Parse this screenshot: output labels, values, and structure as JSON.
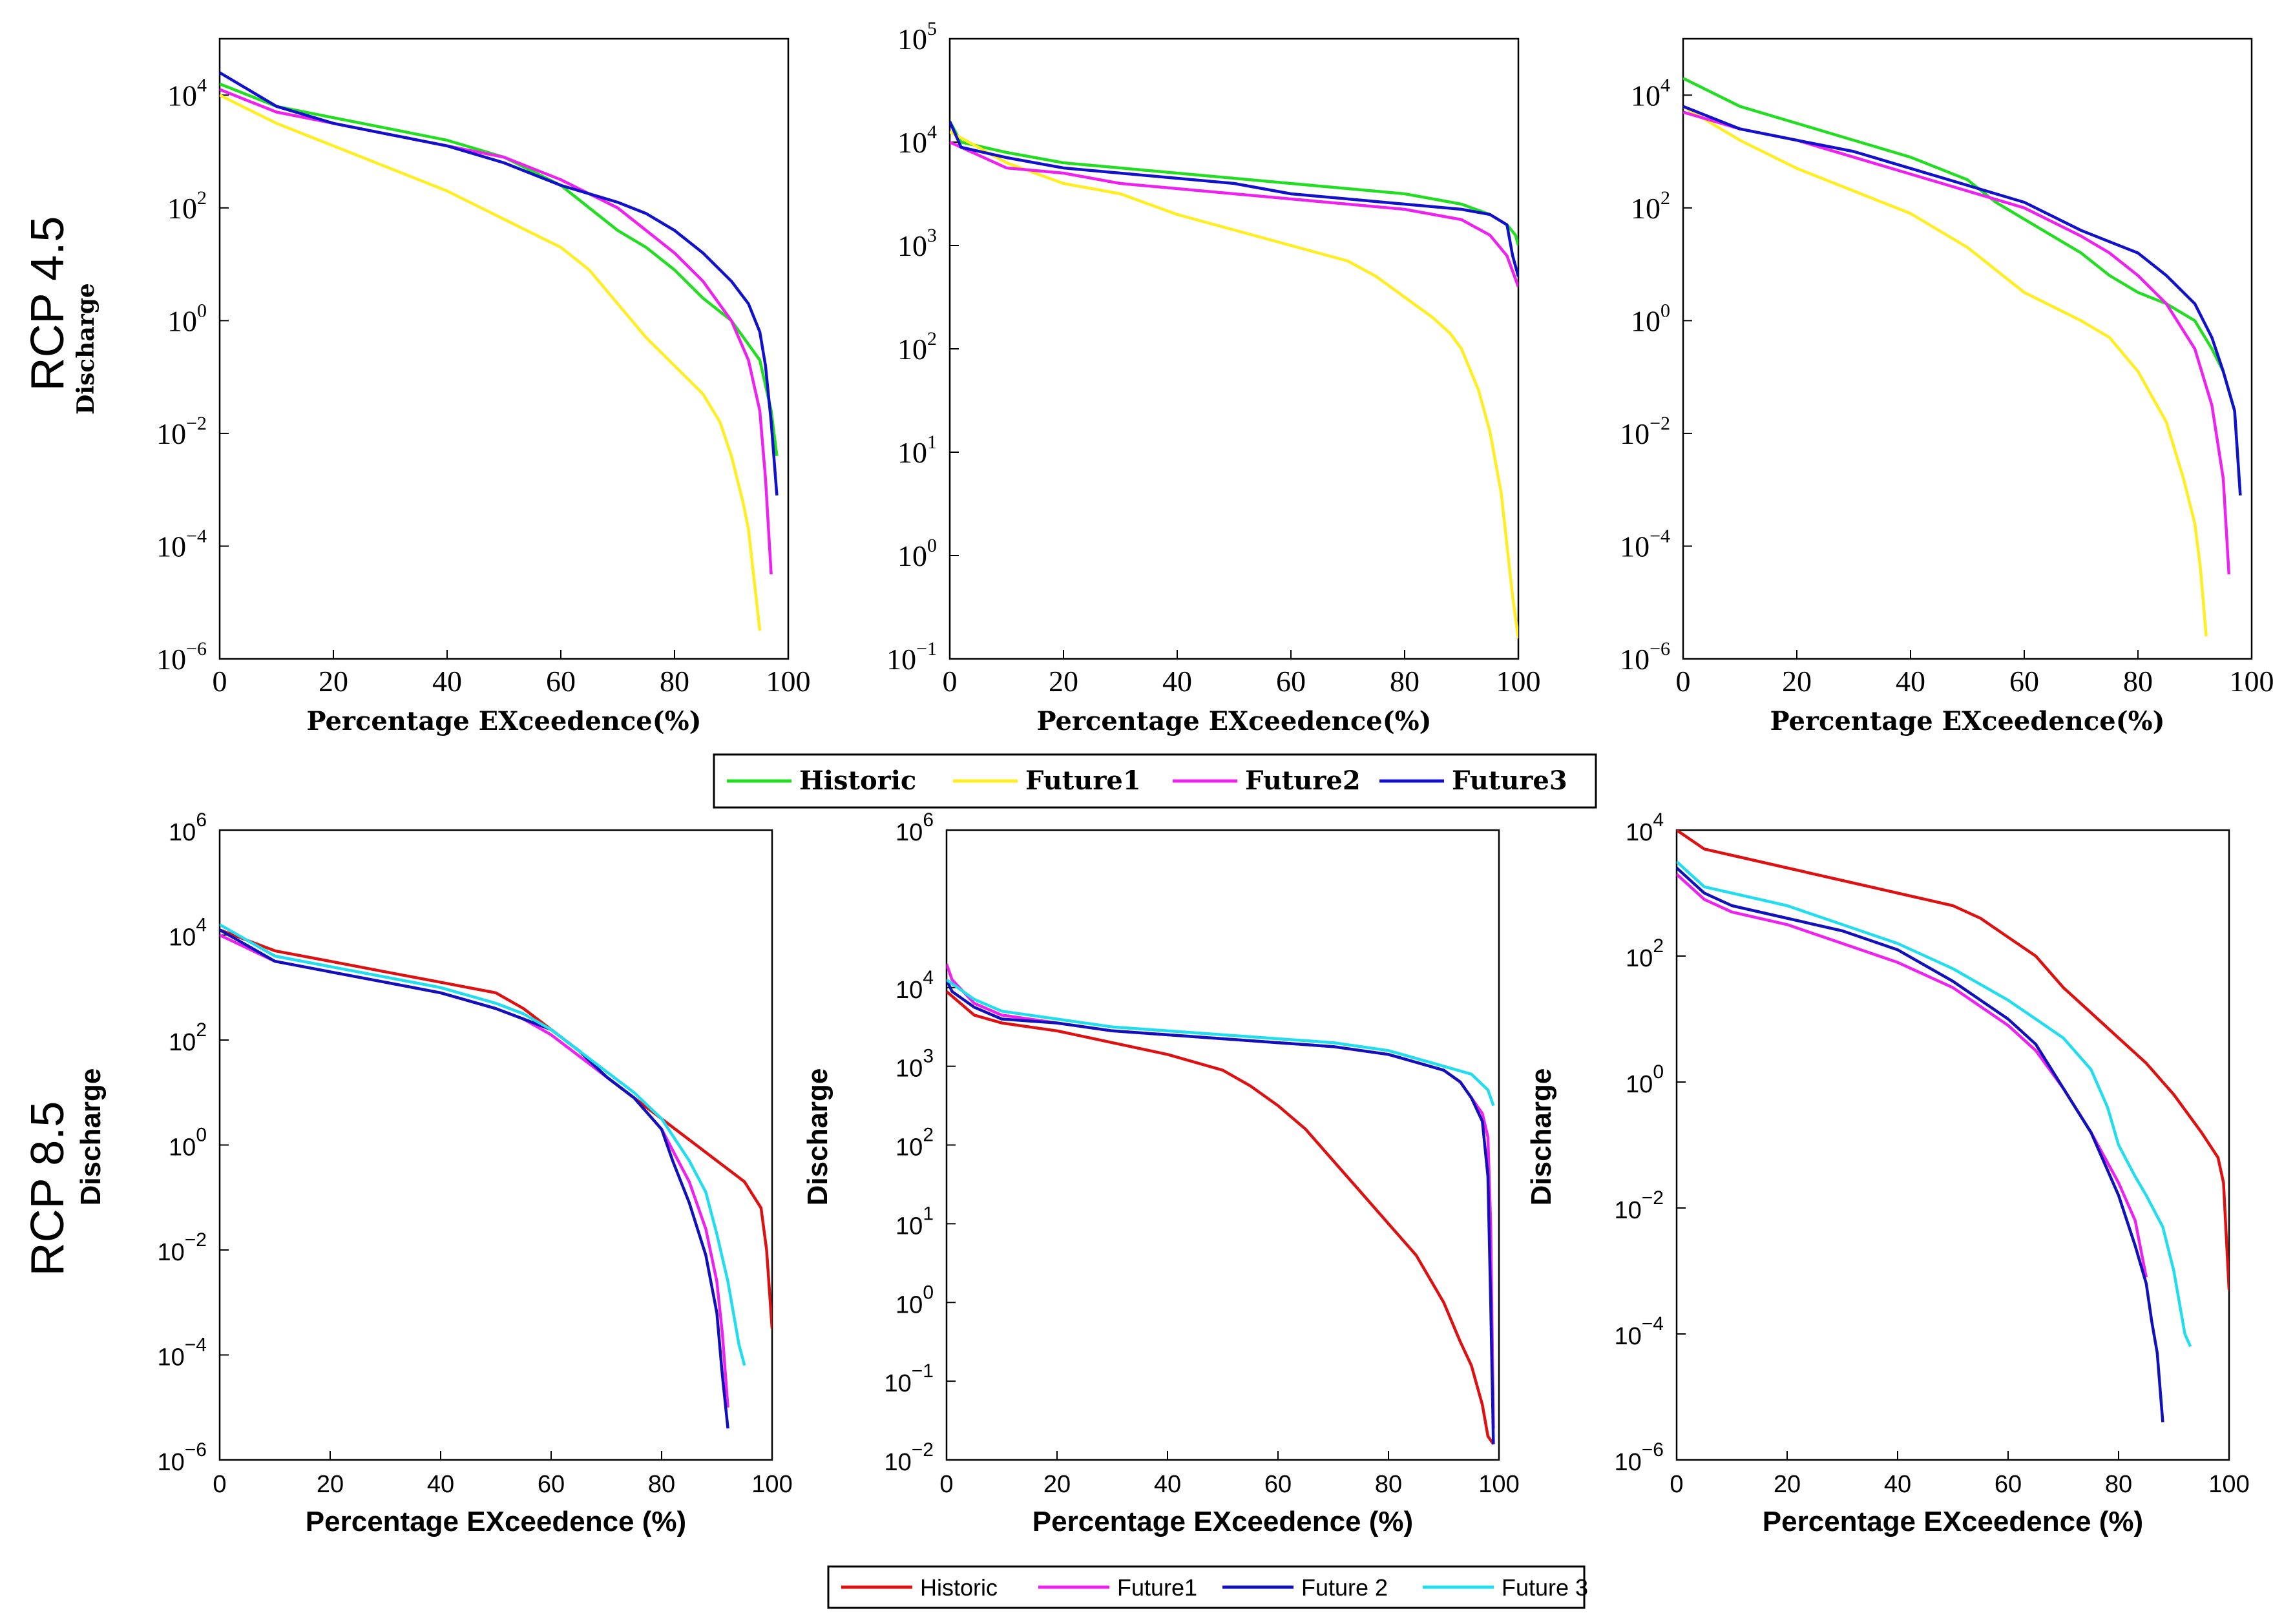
{
  "row_labels": [
    "RCP 4.5",
    "RCP 8.5"
  ],
  "colors": {
    "Historic_top": "#22dd22",
    "Future1_top": "#ffee22",
    "Future2_top": "#ee22ee",
    "Future3_top": "#1111cc",
    "Historic_bottom": "#dd1111",
    "Future1_bottom": "#ee22ee",
    "Future2_bottom": "#1111bb",
    "Future3_bottom": "#22ddee"
  },
  "legends": [
    {
      "entries": [
        "Historic",
        "Future1",
        "Future2",
        "Future3"
      ]
    },
    {
      "entries": [
        "Historic",
        "Future1",
        "Future 2",
        "Future 3"
      ]
    }
  ],
  "chart_data": [
    {
      "type": "line",
      "title": "",
      "xlabel": "Percentage EXceedence(%)",
      "ylabel": "Discharge",
      "xlim": [
        0,
        100
      ],
      "ylim_exp": [
        -6,
        5
      ],
      "xticks": [
        "0",
        "20",
        "40",
        "60",
        "80",
        "100"
      ],
      "yticks_exp": [
        4,
        2,
        0,
        -2,
        -4,
        -6
      ],
      "series": [
        {
          "name": "Historic",
          "x": [
            0,
            10,
            20,
            30,
            40,
            50,
            60,
            65,
            70,
            75,
            80,
            85,
            90,
            95,
            97,
            98
          ],
          "log10_y": [
            4.2,
            3.8,
            3.6,
            3.4,
            3.2,
            2.9,
            2.4,
            2.0,
            1.6,
            1.3,
            0.9,
            0.4,
            0.0,
            -0.7,
            -1.6,
            -2.4
          ]
        },
        {
          "name": "Future1",
          "x": [
            0,
            10,
            20,
            30,
            40,
            50,
            60,
            65,
            70,
            75,
            80,
            85,
            88,
            90,
            92,
            93,
            94,
            95
          ],
          "log10_y": [
            4.0,
            3.5,
            3.1,
            2.7,
            2.3,
            1.8,
            1.3,
            0.9,
            0.3,
            -0.3,
            -0.8,
            -1.3,
            -1.8,
            -2.4,
            -3.2,
            -3.7,
            -4.6,
            -5.5
          ]
        },
        {
          "name": "Future2",
          "x": [
            0,
            10,
            20,
            30,
            40,
            50,
            60,
            70,
            75,
            80,
            85,
            90,
            93,
            95,
            96,
            97
          ],
          "log10_y": [
            4.1,
            3.7,
            3.5,
            3.3,
            3.1,
            2.9,
            2.5,
            2.0,
            1.6,
            1.2,
            0.7,
            0.0,
            -0.7,
            -1.6,
            -2.8,
            -4.5
          ]
        },
        {
          "name": "Future3",
          "x": [
            0,
            10,
            20,
            30,
            40,
            50,
            60,
            70,
            75,
            80,
            85,
            90,
            93,
            95,
            96,
            97,
            98
          ],
          "log10_y": [
            4.4,
            3.8,
            3.5,
            3.3,
            3.1,
            2.8,
            2.4,
            2.1,
            1.9,
            1.6,
            1.2,
            0.7,
            0.3,
            -0.2,
            -0.8,
            -1.8,
            -3.1
          ]
        }
      ]
    },
    {
      "type": "line",
      "title": "",
      "xlabel": "Percentage EXceedence(%)",
      "ylabel": "",
      "xlim": [
        0,
        100
      ],
      "ylim_exp": [
        -1,
        5
      ],
      "xticks": [
        "0",
        "20",
        "40",
        "60",
        "80",
        "100"
      ],
      "yticks_exp": [
        5,
        4,
        3,
        2,
        1,
        0,
        -1
      ],
      "series": [
        {
          "name": "Historic",
          "x": [
            0,
            2,
            10,
            20,
            30,
            40,
            50,
            60,
            70,
            80,
            90,
            95,
            98,
            99.5,
            100
          ],
          "log10_y": [
            4.2,
            4.0,
            3.9,
            3.8,
            3.75,
            3.7,
            3.65,
            3.6,
            3.55,
            3.5,
            3.4,
            3.3,
            3.2,
            3.1,
            3.0
          ]
        },
        {
          "name": "Future1",
          "x": [
            0,
            10,
            20,
            30,
            40,
            50,
            60,
            70,
            75,
            80,
            85,
            88,
            90,
            93,
            95,
            97,
            98,
            99,
            100
          ],
          "log10_y": [
            4.1,
            3.8,
            3.6,
            3.5,
            3.3,
            3.15,
            3.0,
            2.85,
            2.7,
            2.5,
            2.3,
            2.15,
            2.0,
            1.6,
            1.2,
            0.6,
            0.1,
            -0.4,
            -0.8
          ]
        },
        {
          "name": "Future2",
          "x": [
            0,
            10,
            20,
            30,
            40,
            50,
            60,
            70,
            80,
            90,
            95,
            98,
            100
          ],
          "log10_y": [
            4.0,
            3.75,
            3.7,
            3.6,
            3.55,
            3.5,
            3.45,
            3.4,
            3.35,
            3.25,
            3.1,
            2.9,
            2.6
          ]
        },
        {
          "name": "Future3",
          "x": [
            0,
            2,
            10,
            20,
            30,
            40,
            50,
            60,
            70,
            80,
            90,
            95,
            98,
            99,
            100
          ],
          "log10_y": [
            4.2,
            3.95,
            3.85,
            3.75,
            3.7,
            3.65,
            3.6,
            3.5,
            3.45,
            3.4,
            3.35,
            3.3,
            3.2,
            2.9,
            2.7
          ]
        }
      ]
    },
    {
      "type": "line",
      "title": "",
      "xlabel": "Percentage EXceedence(%)",
      "ylabel": "",
      "xlim": [
        0,
        100
      ],
      "ylim_exp": [
        -6,
        5
      ],
      "xticks": [
        "0",
        "20",
        "40",
        "60",
        "80",
        "100"
      ],
      "yticks_exp": [
        4,
        2,
        0,
        -2,
        -4,
        -6
      ],
      "series": [
        {
          "name": "Historic",
          "x": [
            0,
            10,
            20,
            30,
            40,
            50,
            55,
            60,
            70,
            75,
            80,
            85,
            90,
            93,
            95,
            97,
            98
          ],
          "log10_y": [
            4.3,
            3.8,
            3.5,
            3.2,
            2.9,
            2.5,
            2.1,
            1.8,
            1.2,
            0.8,
            0.5,
            0.3,
            0.0,
            -0.5,
            -0.9,
            -1.6,
            -3.1
          ]
        },
        {
          "name": "Future1",
          "x": [
            0,
            10,
            20,
            30,
            40,
            50,
            60,
            70,
            75,
            80,
            85,
            88,
            90,
            91,
            92
          ],
          "log10_y": [
            3.8,
            3.2,
            2.7,
            2.3,
            1.9,
            1.3,
            0.5,
            0.0,
            -0.3,
            -0.9,
            -1.8,
            -2.8,
            -3.6,
            -4.4,
            -5.6
          ]
        },
        {
          "name": "Future2",
          "x": [
            0,
            10,
            20,
            30,
            40,
            50,
            60,
            70,
            75,
            80,
            85,
            90,
            93,
            95,
            96
          ],
          "log10_y": [
            3.7,
            3.4,
            3.2,
            2.9,
            2.6,
            2.3,
            2.0,
            1.5,
            1.2,
            0.8,
            0.3,
            -0.5,
            -1.5,
            -2.8,
            -4.5
          ]
        },
        {
          "name": "Future3",
          "x": [
            0,
            10,
            20,
            30,
            40,
            50,
            60,
            70,
            75,
            80,
            85,
            90,
            93,
            95,
            97,
            98
          ],
          "log10_y": [
            3.8,
            3.4,
            3.2,
            3.0,
            2.7,
            2.4,
            2.1,
            1.6,
            1.4,
            1.2,
            0.8,
            0.3,
            -0.3,
            -0.9,
            -1.6,
            -3.1
          ]
        }
      ]
    },
    {
      "type": "line",
      "title": "",
      "xlabel": "Percentage EXceedence (%)",
      "ylabel": "Discharge",
      "xlim": [
        0,
        100
      ],
      "ylim_exp": [
        -6,
        6
      ],
      "xticks": [
        "0",
        "20",
        "40",
        "60",
        "80",
        "100"
      ],
      "yticks_exp": [
        6,
        4,
        2,
        0,
        -2,
        -4,
        -6
      ],
      "series": [
        {
          "name": "Historic",
          "x": [
            0,
            10,
            20,
            30,
            40,
            50,
            55,
            60,
            65,
            70,
            75,
            80,
            85,
            90,
            95,
            98,
            99,
            100
          ],
          "log10_y": [
            4.1,
            3.7,
            3.5,
            3.3,
            3.1,
            2.9,
            2.6,
            2.2,
            1.8,
            1.3,
            0.9,
            0.5,
            0.1,
            -0.3,
            -0.7,
            -1.2,
            -2.0,
            -3.5
          ]
        },
        {
          "name": "Future1",
          "x": [
            0,
            10,
            20,
            30,
            40,
            50,
            55,
            60,
            65,
            70,
            75,
            80,
            85,
            88,
            90,
            91,
            92
          ],
          "log10_y": [
            4.0,
            3.5,
            3.3,
            3.1,
            2.9,
            2.6,
            2.4,
            2.1,
            1.7,
            1.3,
            0.9,
            0.3,
            -0.7,
            -1.6,
            -2.6,
            -3.6,
            -5.0
          ]
        },
        {
          "name": "Future2",
          "x": [
            0,
            10,
            20,
            30,
            40,
            50,
            55,
            60,
            65,
            70,
            75,
            80,
            82,
            85,
            88,
            90,
            91,
            92
          ],
          "log10_y": [
            4.1,
            3.5,
            3.3,
            3.1,
            2.9,
            2.6,
            2.4,
            2.2,
            1.8,
            1.3,
            0.9,
            0.3,
            -0.3,
            -1.1,
            -2.1,
            -3.2,
            -4.4,
            -5.4
          ]
        },
        {
          "name": "Future3",
          "x": [
            0,
            10,
            20,
            30,
            40,
            50,
            55,
            60,
            65,
            70,
            75,
            80,
            85,
            88,
            90,
            92,
            94,
            95
          ],
          "log10_y": [
            4.2,
            3.6,
            3.4,
            3.2,
            3.0,
            2.7,
            2.5,
            2.2,
            1.8,
            1.4,
            1.0,
            0.5,
            -0.3,
            -0.9,
            -1.7,
            -2.6,
            -3.8,
            -4.2
          ]
        }
      ]
    },
    {
      "type": "line",
      "title": "",
      "xlabel": "Percentage EXceedence (%)",
      "ylabel": "Discharge",
      "xlim": [
        0,
        100
      ],
      "ylim_exp": [
        -2,
        6
      ],
      "xticks": [
        "0",
        "20",
        "40",
        "60",
        "80",
        "100"
      ],
      "yticks_exp": [
        6,
        4,
        3,
        2,
        1,
        0,
        -1,
        -2
      ],
      "series": [
        {
          "name": "Historic",
          "x": [
            0,
            5,
            10,
            20,
            30,
            40,
            50,
            55,
            60,
            65,
            70,
            75,
            80,
            85,
            90,
            93,
            95,
            97,
            98,
            99
          ],
          "log10_y": [
            3.95,
            3.65,
            3.55,
            3.45,
            3.3,
            3.15,
            2.95,
            2.75,
            2.5,
            2.2,
            1.8,
            1.4,
            1.0,
            0.6,
            0.0,
            -0.5,
            -0.8,
            -1.3,
            -1.7,
            -1.8
          ]
        },
        {
          "name": "Future1",
          "x": [
            0,
            1,
            5,
            10,
            20,
            30,
            40,
            50,
            60,
            70,
            80,
            85,
            90,
            93,
            95,
            97,
            98,
            98.5,
            99
          ],
          "log10_y": [
            4.3,
            4.1,
            3.8,
            3.65,
            3.55,
            3.45,
            3.4,
            3.35,
            3.3,
            3.25,
            3.15,
            3.05,
            2.95,
            2.8,
            2.6,
            2.4,
            2.1,
            1.0,
            -1.6
          ]
        },
        {
          "name": "Future2",
          "x": [
            0,
            1,
            5,
            10,
            20,
            30,
            40,
            50,
            60,
            70,
            80,
            85,
            90,
            93,
            95,
            97,
            98,
            98.5,
            99
          ],
          "log10_y": [
            4.1,
            3.95,
            3.75,
            3.6,
            3.55,
            3.45,
            3.4,
            3.35,
            3.3,
            3.25,
            3.15,
            3.05,
            2.95,
            2.8,
            2.6,
            2.3,
            1.6,
            0.0,
            -1.8
          ]
        },
        {
          "name": "Future3",
          "x": [
            0,
            1,
            5,
            10,
            20,
            30,
            40,
            50,
            60,
            70,
            80,
            85,
            90,
            95,
            98,
            99
          ],
          "log10_y": [
            4.1,
            4.05,
            3.85,
            3.7,
            3.6,
            3.5,
            3.45,
            3.4,
            3.35,
            3.3,
            3.2,
            3.1,
            3.0,
            2.9,
            2.7,
            2.5
          ]
        }
      ]
    },
    {
      "type": "line",
      "title": "",
      "xlabel": "Percentage EXceedence (%)",
      "ylabel": "Discharge",
      "xlim": [
        0,
        100
      ],
      "ylim_exp": [
        -6,
        4
      ],
      "xticks": [
        "0",
        "20",
        "40",
        "60",
        "80",
        "100"
      ],
      "yticks_exp": [
        4,
        2,
        0,
        -2,
        -4,
        -6
      ],
      "series": [
        {
          "name": "Historic",
          "x": [
            0,
            5,
            10,
            20,
            30,
            40,
            50,
            55,
            60,
            65,
            70,
            75,
            80,
            85,
            90,
            95,
            98,
            99,
            100
          ],
          "log10_y": [
            4.0,
            3.7,
            3.6,
            3.4,
            3.2,
            3.0,
            2.8,
            2.6,
            2.3,
            2.0,
            1.5,
            1.1,
            0.7,
            0.3,
            -0.2,
            -0.8,
            -1.2,
            -1.6,
            -3.3
          ]
        },
        {
          "name": "Future1",
          "x": [
            0,
            5,
            10,
            20,
            30,
            40,
            50,
            60,
            65,
            70,
            75,
            80,
            83,
            85
          ],
          "log10_y": [
            3.3,
            2.9,
            2.7,
            2.5,
            2.2,
            1.9,
            1.5,
            0.9,
            0.5,
            -0.1,
            -0.8,
            -1.6,
            -2.2,
            -3.1
          ]
        },
        {
          "name": "Future2",
          "x": [
            0,
            5,
            10,
            20,
            30,
            40,
            50,
            60,
            65,
            70,
            75,
            80,
            83,
            85,
            86,
            87,
            88
          ],
          "log10_y": [
            3.4,
            3.0,
            2.8,
            2.6,
            2.4,
            2.1,
            1.6,
            1.0,
            0.6,
            -0.1,
            -0.8,
            -1.8,
            -2.6,
            -3.2,
            -3.8,
            -4.3,
            -5.4
          ]
        },
        {
          "name": "Future3",
          "x": [
            0,
            5,
            10,
            20,
            30,
            40,
            50,
            60,
            65,
            70,
            75,
            78,
            80,
            83,
            85,
            88,
            90,
            92,
            93
          ],
          "log10_y": [
            3.5,
            3.1,
            3.0,
            2.8,
            2.5,
            2.2,
            1.8,
            1.3,
            1.0,
            0.7,
            0.2,
            -0.4,
            -1.0,
            -1.5,
            -1.8,
            -2.3,
            -3.0,
            -4.0,
            -4.2
          ]
        }
      ]
    }
  ]
}
